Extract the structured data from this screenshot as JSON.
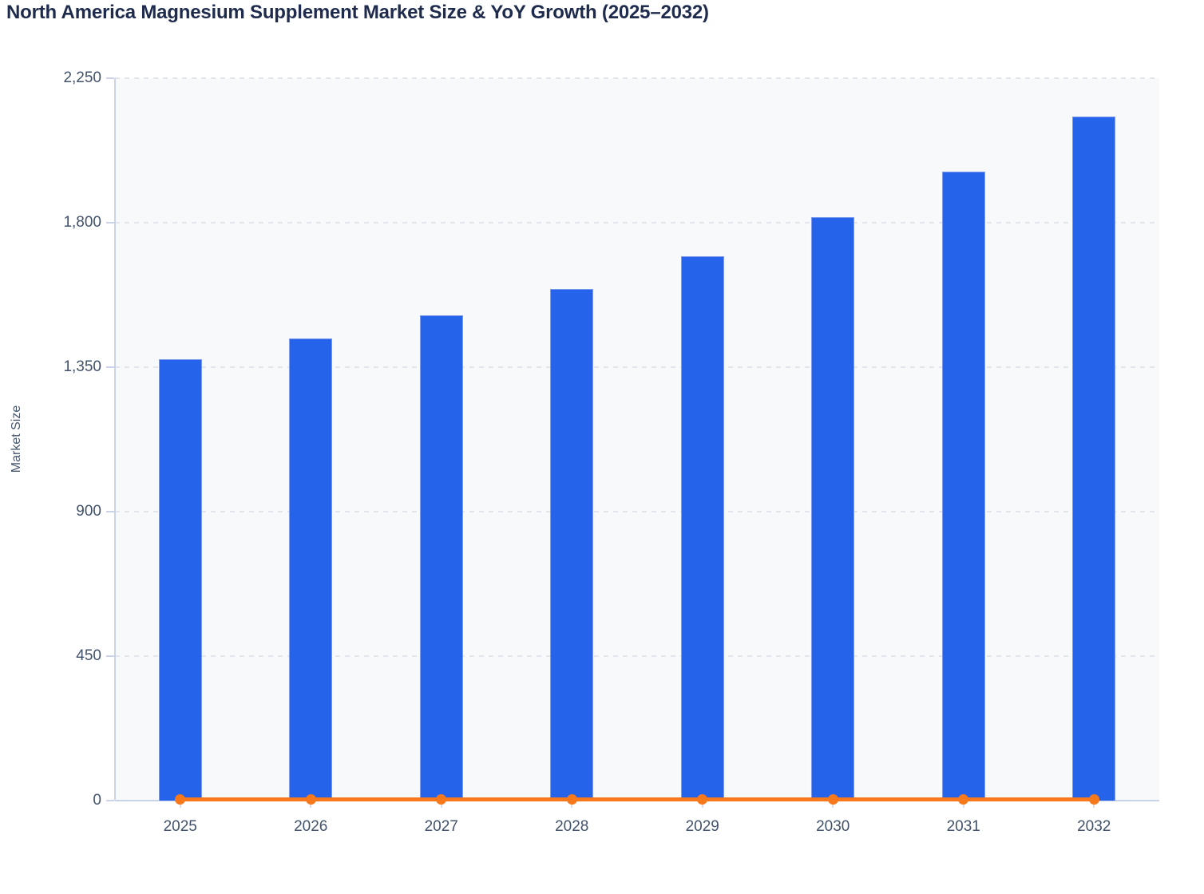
{
  "chart_data": {
    "type": "bar",
    "title": "North America Magnesium Supplement Market Size & YoY Growth (2025–2032)",
    "xlabel": "",
    "ylabel": "Market Size",
    "categories": [
      "2025",
      "2026",
      "2027",
      "2028",
      "2029",
      "2030",
      "2031",
      "2032"
    ],
    "series": [
      {
        "name": "Market Size",
        "type": "bar",
        "color": "#2563eb",
        "values": [
          1376,
          1440,
          1512,
          1595,
          1696,
          1817,
          1960,
          2132
        ]
      },
      {
        "name": "YoY Growth",
        "type": "line",
        "color": "#f7791b",
        "values": [
          0,
          0,
          0,
          0,
          0,
          0,
          0,
          0
        ],
        "note": "Orange line with round markers at every year renders flat along the zero baseline; growth-percent values are too small for the Market Size axis scale."
      }
    ],
    "ylim": [
      0,
      2250
    ],
    "yticks": [
      0,
      450,
      900,
      1350,
      1800,
      2250
    ],
    "grid": "horizontal-dashed",
    "legend": "none",
    "plot_background": "#f8f9fb",
    "axis_line_color": "#cbd3e8",
    "gridline_color": "#e2e5ec",
    "tick_label_color": "#42526b",
    "title_color": "#1e2b4d"
  }
}
